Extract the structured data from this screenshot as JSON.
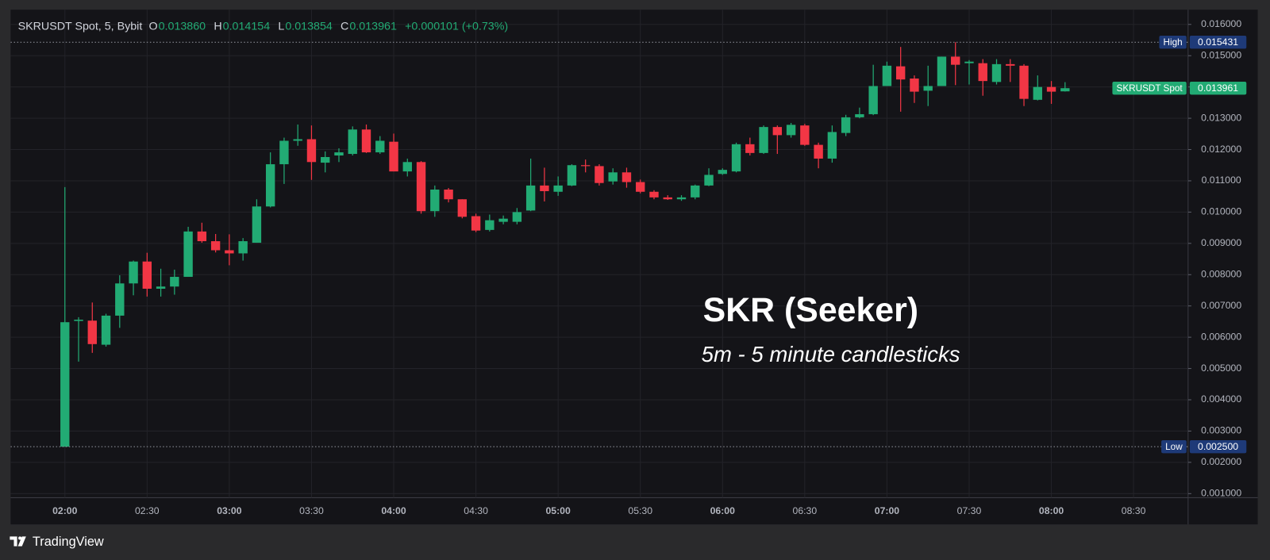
{
  "chart_data": {
    "type": "candlestick",
    "header": {
      "symbol": "SKRUSDT Spot, 5, Bybit",
      "ohlc": [
        {
          "label": "O",
          "value": "0.013860"
        },
        {
          "label": "H",
          "value": "0.014154"
        },
        {
          "label": "L",
          "value": "0.013854"
        },
        {
          "label": "C",
          "value": "0.013961"
        }
      ],
      "change": "+0.000101 (+0.73%)"
    },
    "title": "SKR (Seeker)",
    "subtitle": "5m - 5 minute candlesticks",
    "brand": "TradingView",
    "up_color": "#22ab74",
    "down_color": "#f23645",
    "x": [
      120,
      125,
      130,
      135,
      140,
      145,
      150,
      155,
      160,
      165,
      170,
      175,
      180,
      185,
      190,
      195,
      200,
      205,
      210,
      215,
      220,
      225,
      230,
      235,
      240,
      245,
      250,
      255,
      260,
      265,
      270,
      275,
      280,
      285,
      290,
      295,
      300,
      305,
      310,
      315,
      320,
      325,
      330,
      335,
      340,
      345,
      350,
      355,
      360,
      365,
      370,
      375,
      380,
      385,
      390,
      395,
      400,
      405,
      410,
      415,
      420,
      425,
      430,
      435,
      440,
      445,
      450,
      455,
      460,
      465,
      470,
      475,
      480,
      485
    ],
    "open": [
      0.0025,
      0.00652,
      0.00653,
      0.00576,
      0.00669,
      0.00772,
      0.00842,
      0.00755,
      0.00762,
      0.00793,
      0.00938,
      0.00907,
      0.00878,
      0.00868,
      0.00902,
      0.01018,
      0.01153,
      0.01228,
      0.01233,
      0.01158,
      0.01181,
      0.01186,
      0.01264,
      0.01191,
      0.01225,
      0.0113,
      0.0116,
      0.01003,
      0.01072,
      0.01041,
      0.00987,
      0.00943,
      0.00969,
      0.00969,
      0.01005,
      0.01085,
      0.01065,
      0.01085,
      0.0115,
      0.01147,
      0.01098,
      0.01127,
      0.01096,
      0.01065,
      0.01047,
      0.01041,
      0.01047,
      0.01085,
      0.01122,
      0.0113,
      0.01217,
      0.01189,
      0.01272,
      0.01246,
      0.01277,
      0.01215,
      0.01171,
      0.01253,
      0.01303,
      0.01313,
      0.01403,
      0.01466,
      0.01427,
      0.01388,
      0.01403,
      0.01497,
      0.01476,
      0.01476,
      0.01416,
      0.01473,
      0.01468,
      0.01359,
      0.014,
      0.01386
    ],
    "high": [
      0.0108,
      0.00664,
      0.00711,
      0.00675,
      0.00798,
      0.00845,
      0.0087,
      0.00819,
      0.00816,
      0.00953,
      0.00966,
      0.0093,
      0.00929,
      0.00917,
      0.01041,
      0.01191,
      0.01238,
      0.0128,
      0.01277,
      0.01194,
      0.01204,
      0.01274,
      0.0128,
      0.01243,
      0.01251,
      0.01171,
      0.01163,
      0.01085,
      0.01077,
      0.01041,
      0.00995,
      0.00992,
      0.00989,
      0.01013,
      0.01171,
      0.01142,
      0.01114,
      0.01153,
      0.01168,
      0.01153,
      0.0114,
      0.01142,
      0.01104,
      0.0107,
      0.01054,
      0.01054,
      0.01088,
      0.0114,
      0.0114,
      0.01222,
      0.01238,
      0.01277,
      0.01277,
      0.01285,
      0.01282,
      0.01222,
      0.01277,
      0.01311,
      0.01334,
      0.01471,
      0.01481,
      0.01528,
      0.01437,
      0.01468,
      0.01497,
      0.015431,
      0.01486,
      0.01489,
      0.01489,
      0.01489,
      0.01473,
      0.01437,
      0.01419,
      0.014154
    ],
    "low": [
      0.0025,
      0.00522,
      0.0055,
      0.0057,
      0.0063,
      0.00734,
      0.0073,
      0.0073,
      0.00736,
      0.00793,
      0.00902,
      0.00871,
      0.0083,
      0.00845,
      0.00902,
      0.01015,
      0.0109,
      0.01212,
      0.01103,
      0.01127,
      0.0116,
      0.01181,
      0.01189,
      0.01186,
      0.0113,
      0.01114,
      0.00995,
      0.00985,
      0.01031,
      0.0098,
      0.00936,
      0.00938,
      0.00961,
      0.00961,
      0.01003,
      0.01034,
      0.01052,
      0.01083,
      0.01127,
      0.01085,
      0.01088,
      0.01078,
      0.0106,
      0.01041,
      0.01039,
      0.01036,
      0.01041,
      0.01083,
      0.01119,
      0.01127,
      0.01181,
      0.01186,
      0.01186,
      0.01238,
      0.01212,
      0.0114,
      0.01158,
      0.01243,
      0.013,
      0.0131,
      0.01403,
      0.01321,
      0.01349,
      0.01339,
      0.01403,
      0.01406,
      0.01408,
      0.01372,
      0.01408,
      0.01416,
      0.01339,
      0.01357,
      0.01346,
      0.013854
    ],
    "close": [
      0.00648,
      0.00656,
      0.00578,
      0.00669,
      0.00772,
      0.00842,
      0.00755,
      0.00762,
      0.00793,
      0.00938,
      0.00907,
      0.00878,
      0.00868,
      0.00907,
      0.01018,
      0.01153,
      0.01228,
      0.01233,
      0.0116,
      0.01176,
      0.01191,
      0.01264,
      0.01191,
      0.01228,
      0.0113,
      0.0116,
      0.01003,
      0.01072,
      0.01041,
      0.00985,
      0.00941,
      0.00974,
      0.00979,
      0.01,
      0.01085,
      0.01067,
      0.01085,
      0.0115,
      0.01147,
      0.01093,
      0.01127,
      0.01096,
      0.01065,
      0.01047,
      0.01041,
      0.01047,
      0.01085,
      0.01119,
      0.01135,
      0.01217,
      0.01189,
      0.01272,
      0.01246,
      0.01279,
      0.01215,
      0.01171,
      0.01256,
      0.01303,
      0.01313,
      0.01403,
      0.01468,
      0.01424,
      0.01385,
      0.01403,
      0.01497,
      0.01471,
      0.01481,
      0.01419,
      0.01473,
      0.01468,
      0.01362,
      0.014,
      0.01385,
      0.013961
    ],
    "xlim": [
      100.2,
      529.9
    ],
    "xticks": [
      {
        "value": 120,
        "label": "02:00"
      },
      {
        "value": 150,
        "label": "02:30"
      },
      {
        "value": 180,
        "label": "03:00"
      },
      {
        "value": 210,
        "label": "03:30"
      },
      {
        "value": 240,
        "label": "04:00"
      },
      {
        "value": 270,
        "label": "04:30"
      },
      {
        "value": 300,
        "label": "05:00"
      },
      {
        "value": 330,
        "label": "05:30"
      },
      {
        "value": 360,
        "label": "06:00"
      },
      {
        "value": 390,
        "label": "06:30"
      },
      {
        "value": 420,
        "label": "07:00"
      },
      {
        "value": 450,
        "label": "07:30"
      },
      {
        "value": 480,
        "label": "08:00"
      },
      {
        "value": 510,
        "label": "08:30"
      }
    ],
    "ylim": [
      0.00087,
      0.01647
    ],
    "yticks": [
      {
        "value": 0.001,
        "label": "0.001000"
      },
      {
        "value": 0.002,
        "label": "0.002000"
      },
      {
        "value": 0.003,
        "label": "0.003000"
      },
      {
        "value": 0.004,
        "label": "0.004000"
      },
      {
        "value": 0.005,
        "label": "0.005000"
      },
      {
        "value": 0.006,
        "label": "0.006000"
      },
      {
        "value": 0.007,
        "label": "0.007000"
      },
      {
        "value": 0.008,
        "label": "0.008000"
      },
      {
        "value": 0.009,
        "label": "0.009000"
      },
      {
        "value": 0.01,
        "label": "0.010000"
      },
      {
        "value": 0.011,
        "label": "0.011000"
      },
      {
        "value": 0.012,
        "label": "0.012000"
      },
      {
        "value": 0.013,
        "label": "0.013000"
      },
      {
        "value": 0.014,
        "label": "0.014000"
      },
      {
        "value": 0.015,
        "label": "0.015000"
      },
      {
        "value": 0.016,
        "label": "0.016000"
      }
    ],
    "grid": true,
    "price_markers": [
      {
        "name": "High",
        "value": 0.015431,
        "value_label": "0.015431",
        "color": "#1e3a78",
        "line": true
      },
      {
        "name": "Low",
        "value": 0.0025,
        "value_label": "0.002500",
        "color": "#1e3a78",
        "line": true
      },
      {
        "name": "SKRUSDT Spot",
        "value": 0.013961,
        "value_label": "0.013961",
        "color": "#22ab74",
        "line": false
      }
    ]
  }
}
